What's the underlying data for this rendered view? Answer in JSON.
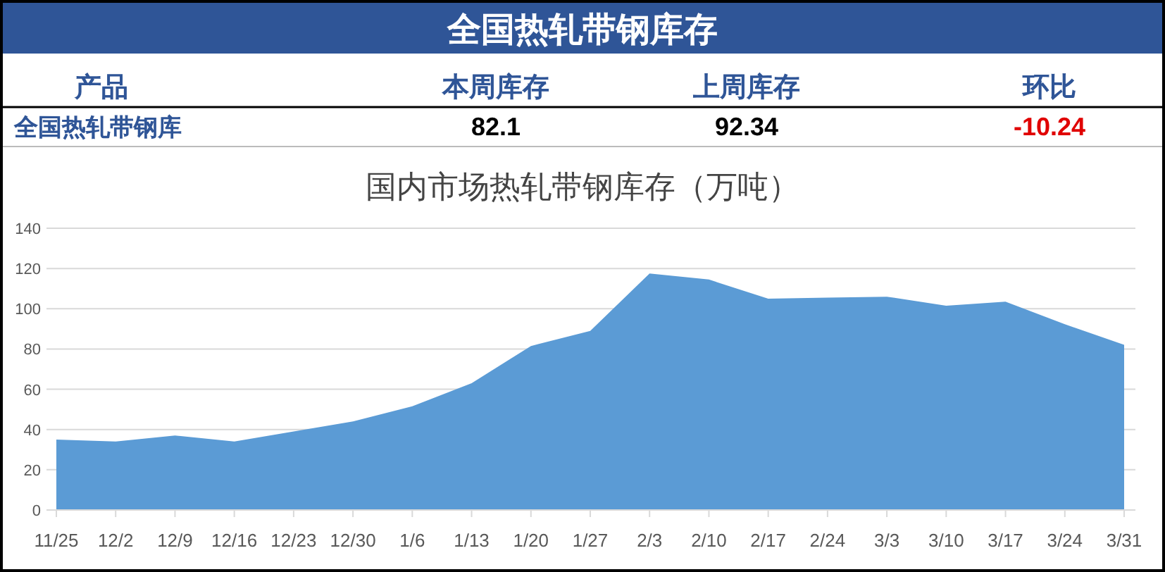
{
  "chart_data": [
    {
      "type": "other",
      "title": "全国热轧带钢库存",
      "annotations": [
        "产品",
        "82.1",
        "92.34",
        "-10.24"
      ],
      "categories": [
        "本周库存",
        "上周库存",
        "环比"
      ],
      "y_categories": [
        "全国热轧带钢库"
      ],
      "colors": [
        "#000000",
        "#000000",
        "#e00000"
      ]
    },
    {
      "type": "area",
      "title": "国内市场热轧带钢库存（万吨）",
      "categories": [
        "11/25",
        "12/2",
        "12/9",
        "12/16",
        "12/23",
        "12/30",
        "1/6",
        "1/13",
        "1/20",
        "1/27",
        "2/3",
        "2/10",
        "2/17",
        "2/24",
        "3/3",
        "3/10",
        "3/17",
        "3/24",
        "3/31"
      ],
      "series": [
        {
          "color": "#5b9bd5",
          "values": [
            35,
            34,
            37,
            34,
            39,
            44,
            51.5,
            63,
            81.5,
            89,
            117.5,
            114.5,
            105,
            105.5,
            106,
            101.5,
            103.5,
            92.3,
            82.1
          ]
        }
      ],
      "ylim": [
        0,
        140
      ],
      "yticks": [
        0,
        20,
        40,
        60,
        80,
        100,
        120,
        140
      ],
      "grid": "y"
    }
  ]
}
